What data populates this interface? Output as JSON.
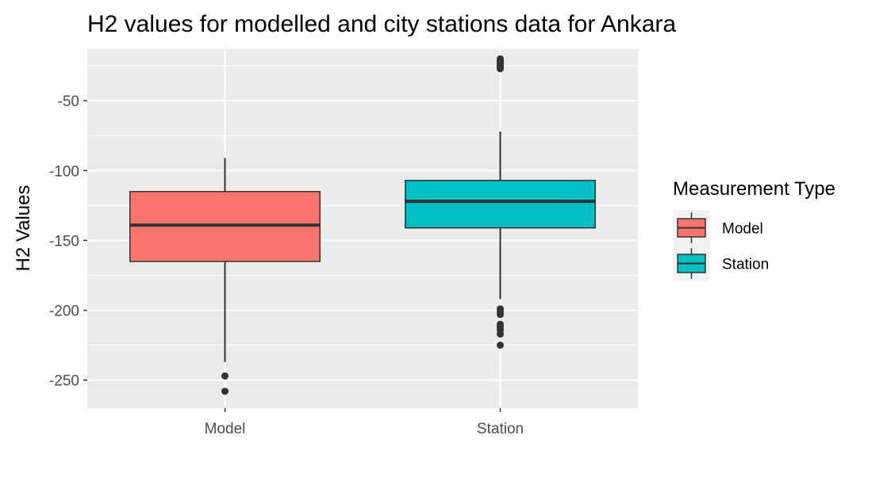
{
  "chart_data": {
    "type": "boxplot",
    "title": "H2 values for modelled and city stations data for Ankara",
    "xlabel": "",
    "ylabel": "H2 Values",
    "ylim": [
      -270,
      -13
    ],
    "yticks": [
      -50,
      -100,
      -150,
      -200,
      -250
    ],
    "y_minor_grid": [
      -25,
      -75,
      -125,
      -175,
      -225
    ],
    "categories": [
      "Model",
      "Station"
    ],
    "grid": true,
    "legend": {
      "title": "Measurement Type",
      "placement": "right",
      "entries": [
        "Model",
        "Station"
      ]
    },
    "series": [
      {
        "name": "Model",
        "color": "#F8766D",
        "whisker_low": -237,
        "q1": -165,
        "median": -139,
        "q3": -115,
        "whisker_high": -91,
        "outliers": [
          -247,
          -258
        ]
      },
      {
        "name": "Station",
        "color": "#00BFC4",
        "whisker_low": -192,
        "q1": -141,
        "median": -122,
        "q3": -107,
        "whisker_high": -72,
        "outliers": [
          -20,
          -21,
          -22,
          -23,
          -24,
          -25,
          -26,
          -27,
          -199,
          -201,
          -203,
          -210,
          -212,
          -214,
          -217,
          -225
        ]
      }
    ]
  }
}
